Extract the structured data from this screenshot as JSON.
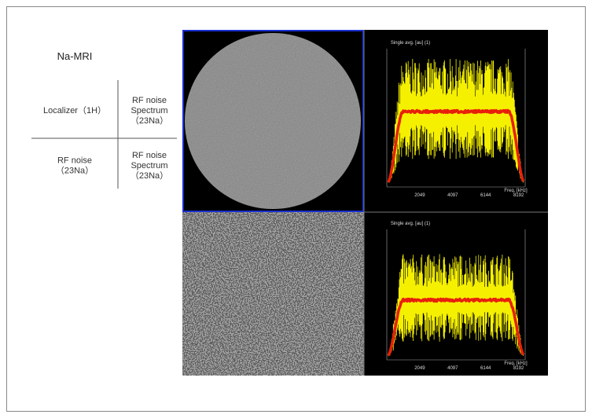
{
  "title": "Na-MRI",
  "legend": {
    "top_left": "Localizer（1H）",
    "top_right": [
      "RF noise",
      "Spectrum",
      "（23Na）"
    ],
    "bottom_left": [
      "RF noise",
      "（23Na）"
    ],
    "bottom_right": [
      "RF noise",
      "Spectrum",
      "（23Na）"
    ]
  },
  "panels": {
    "top_spectrum": {
      "y_label": "Single avg. [au] (1)",
      "x_label": "Freq. [kHz]",
      "x_ticks": [
        "2049",
        "4097",
        "6144",
        "8192"
      ]
    },
    "bottom_spectrum": {
      "y_label": "Single avg. [au] (1)",
      "x_label": "Freq. [kHz]",
      "x_ticks": [
        "2049",
        "4097",
        "6144",
        "8192"
      ]
    }
  }
}
